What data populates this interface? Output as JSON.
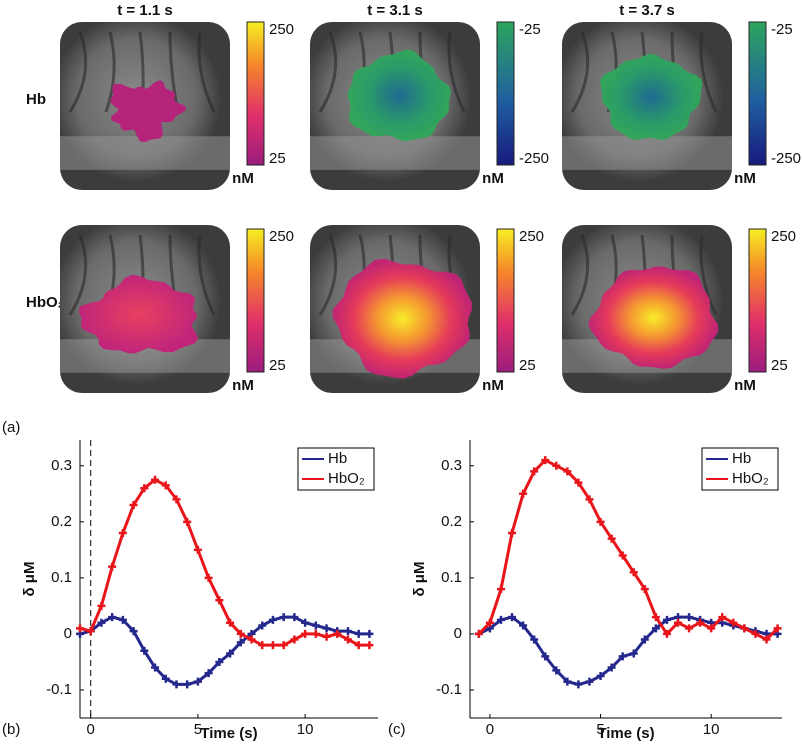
{
  "panel_a": {
    "label": "(a)",
    "times": [
      "t = 1.1 s",
      "t = 3.1 s",
      "t = 3.7 s"
    ],
    "unit": "nM",
    "rows": [
      {
        "name": "Hb",
        "scales": [
          {
            "max": 250,
            "min": 25
          },
          {
            "max": -25,
            "min": -250
          },
          {
            "max": -25,
            "min": -250
          }
        ]
      },
      {
        "name": "HbO₂",
        "scales": [
          {
            "max": 250,
            "min": 25
          },
          {
            "max": 250,
            "min": 25
          },
          {
            "max": 250,
            "min": 25
          }
        ]
      }
    ]
  },
  "chart_data": [
    {
      "type": "line",
      "label": "(b)",
      "xlabel": "Time (s)",
      "ylabel": "δ μM",
      "xlim": [
        -0.5,
        13.4
      ],
      "ylim": [
        -0.15,
        0.346
      ],
      "xticks": [
        0,
        5,
        10
      ],
      "yticks": [
        -0.1,
        0,
        0.1,
        0.2,
        0.3
      ],
      "vline": 0,
      "legend": "upper right",
      "x": [
        -0.5,
        0,
        0.5,
        1,
        1.5,
        2,
        2.5,
        3,
        3.5,
        4,
        4.5,
        5,
        5.5,
        6,
        6.5,
        7,
        7.5,
        8,
        8.5,
        9,
        9.5,
        10,
        10.5,
        11,
        11.5,
        12,
        12.5,
        13
      ],
      "series": [
        {
          "name": "Hb",
          "color": "#24288c",
          "values": [
            0,
            0.005,
            0.02,
            0.03,
            0.025,
            0.005,
            -0.03,
            -0.06,
            -0.08,
            -0.09,
            -0.09,
            -0.085,
            -0.07,
            -0.05,
            -0.035,
            -0.015,
            0,
            0.015,
            0.025,
            0.03,
            0.03,
            0.02,
            0.015,
            0.01,
            0.005,
            0.005,
            0,
            0
          ]
        },
        {
          "name": "HbO₂",
          "color": "#e8151b",
          "values": [
            0.01,
            0.005,
            0.05,
            0.12,
            0.18,
            0.23,
            0.26,
            0.275,
            0.265,
            0.24,
            0.2,
            0.15,
            0.1,
            0.06,
            0.02,
            0,
            -0.01,
            -0.02,
            -0.02,
            -0.02,
            -0.01,
            0,
            0,
            -0.005,
            0,
            -0.01,
            -0.02,
            -0.02
          ]
        }
      ]
    },
    {
      "type": "line",
      "label": "(c)",
      "xlabel": "Time (s)",
      "ylabel": "δ μM",
      "xlim": [
        -0.9,
        13.2
      ],
      "ylim": [
        -0.15,
        0.346
      ],
      "xticks": [
        0,
        5,
        10
      ],
      "yticks": [
        -0.1,
        0,
        0.1,
        0.2,
        0.3
      ],
      "legend": "upper right",
      "x": [
        -0.5,
        0,
        0.5,
        1,
        1.5,
        2,
        2.5,
        3,
        3.5,
        4,
        4.5,
        5,
        5.5,
        6,
        6.5,
        7,
        7.5,
        8,
        8.5,
        9,
        9.5,
        10,
        10.5,
        11,
        11.5,
        12,
        12.5,
        13
      ],
      "series": [
        {
          "name": "Hb",
          "color": "#24288c",
          "values": [
            0,
            0.01,
            0.025,
            0.03,
            0.015,
            -0.01,
            -0.04,
            -0.065,
            -0.085,
            -0.09,
            -0.085,
            -0.075,
            -0.06,
            -0.04,
            -0.035,
            -0.01,
            0.01,
            0.025,
            0.03,
            0.03,
            0.025,
            0.02,
            0.02,
            0.015,
            0.01,
            0.005,
            0,
            0
          ]
        },
        {
          "name": "HbO₂",
          "color": "#e8151b",
          "values": [
            0,
            0.02,
            0.08,
            0.18,
            0.25,
            0.29,
            0.31,
            0.3,
            0.29,
            0.27,
            0.24,
            0.2,
            0.17,
            0.14,
            0.11,
            0.08,
            0.03,
            0,
            0.02,
            0.01,
            0.02,
            0.01,
            0.03,
            0.02,
            0.01,
            0,
            -0.01,
            0.01
          ]
        }
      ]
    }
  ]
}
